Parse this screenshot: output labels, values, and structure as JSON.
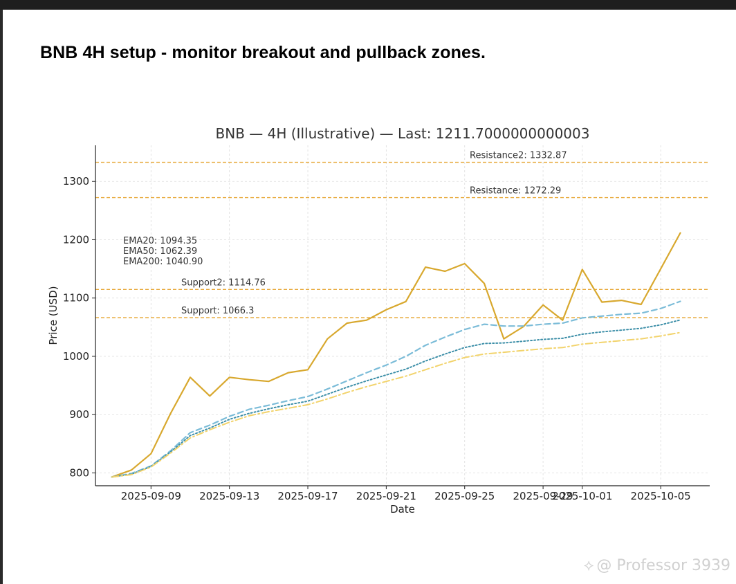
{
  "headline": "BNB 4H setup - monitor breakout and pullback zones.",
  "watermark": {
    "logo_icon": "binance-diamond-icon",
    "text": "@ Professor 3939"
  },
  "chart_data": {
    "type": "line",
    "title": "BNB — 4H (Illustrative) — Last: 1211.7000000000003",
    "xlabel": "Date",
    "ylabel": "Price (USD)",
    "ylim": [
      778,
      1362
    ],
    "xlim": [
      "2025-09-06T04:00",
      "2025-10-07T12:00"
    ],
    "grid": true,
    "yticks": [
      800,
      900,
      1000,
      1100,
      1200,
      1300
    ],
    "xticks": [
      "2025-09-09",
      "2025-09-13",
      "2025-09-17",
      "2025-09-21",
      "2025-09-25",
      "2025-09-29",
      "2025-10-01",
      "2025-10-05"
    ],
    "x": [
      "2025-09-07",
      "2025-09-08",
      "2025-09-09",
      "2025-09-10",
      "2025-09-11",
      "2025-09-12",
      "2025-09-13",
      "2025-09-14",
      "2025-09-15",
      "2025-09-16",
      "2025-09-17",
      "2025-09-18",
      "2025-09-19",
      "2025-09-20",
      "2025-09-21",
      "2025-09-22",
      "2025-09-23",
      "2025-09-24",
      "2025-09-25",
      "2025-09-26",
      "2025-09-27",
      "2025-09-28",
      "2025-09-29",
      "2025-09-30",
      "2025-10-01",
      "2025-10-02",
      "2025-10-03",
      "2025-10-04",
      "2025-10-05",
      "2025-10-06"
    ],
    "series": [
      {
        "id": "price",
        "color": "#d8a82e",
        "dash": "",
        "width": 2.2,
        "values": [
          793,
          805,
          833,
          902,
          964,
          932,
          964,
          960,
          957,
          972,
          977,
          1030,
          1057,
          1062,
          1080,
          1094,
          1153,
          1146,
          1159,
          1125,
          1030,
          1051,
          1088,
          1062,
          1149,
          1093,
          1096,
          1089,
          1150,
          1211.7
        ]
      },
      {
        "id": "ema20",
        "color": "#7bbcd8",
        "dash": "8 5",
        "width": 2.2,
        "values": [
          793,
          799,
          812,
          838,
          869,
          882,
          897,
          909,
          916,
          924,
          931,
          944,
          958,
          972,
          985,
          1000,
          1019,
          1033,
          1046,
          1055,
          1052,
          1052,
          1055,
          1057,
          1066,
          1069,
          1072,
          1074,
          1082,
          1094.35
        ]
      },
      {
        "id": "ema50",
        "color": "#3d8fa8",
        "dash": "2 3",
        "width": 2.0,
        "values": [
          793,
          798,
          811,
          836,
          864,
          877,
          892,
          902,
          910,
          917,
          923,
          935,
          947,
          958,
          968,
          978,
          992,
          1004,
          1015,
          1022,
          1023,
          1026,
          1029,
          1031,
          1038,
          1042,
          1045,
          1048,
          1054,
          1062.39
        ]
      },
      {
        "id": "ema200",
        "color": "#f2d36b",
        "dash": "10 4 2 4",
        "width": 2.0,
        "values": [
          793,
          797,
          810,
          834,
          860,
          874,
          887,
          898,
          905,
          911,
          917,
          927,
          938,
          948,
          957,
          966,
          977,
          988,
          998,
          1004,
          1007,
          1010,
          1013,
          1015,
          1021,
          1024,
          1027,
          1030,
          1035,
          1040.9
        ]
      }
    ],
    "levels": [
      {
        "label": "Resistance2: 1332.87",
        "value": 1332.87
      },
      {
        "label": "Resistance: 1272.29",
        "value": 1272.29
      },
      {
        "label": "Support2: 1114.76",
        "value": 1114.76
      },
      {
        "label": "Support: 1066.3",
        "value": 1066.3
      }
    ],
    "level_color": "#e7a93a",
    "legend_lines": [
      "EMA20: 1094.35",
      "EMA50: 1062.39",
      "EMA200: 1040.90"
    ]
  }
}
